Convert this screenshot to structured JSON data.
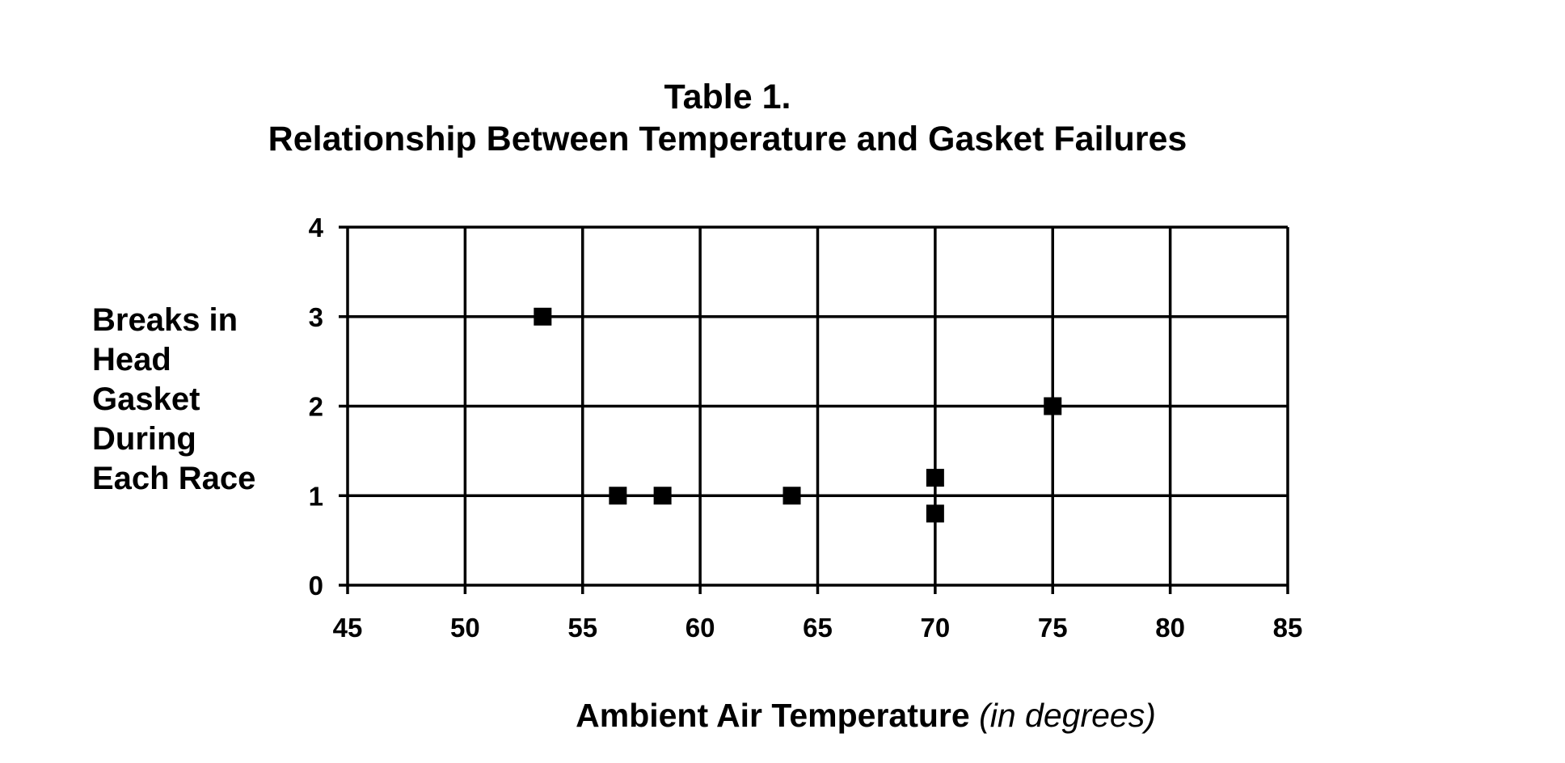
{
  "chart_data": {
    "type": "scatter",
    "title": "Table 1.",
    "subtitle": "Relationship Between Temperature and Gasket Failures",
    "xlabel": "Ambient Air Temperature",
    "xlabel_unit": "(in degrees)",
    "ylabel_lines": [
      "Breaks in",
      "Head",
      "Gasket",
      "During",
      "Each Race"
    ],
    "xlim": [
      45,
      85
    ],
    "ylim": [
      0,
      4
    ],
    "x_ticks": [
      "45",
      "50",
      "55",
      "60",
      "65",
      "70",
      "75",
      "80",
      "85"
    ],
    "y_ticks": [
      "0",
      "1",
      "2",
      "3",
      "4"
    ],
    "grid": true,
    "marker": "square",
    "marker_color": "#000000",
    "series": [
      {
        "points": [
          {
            "x": 53.3,
            "y": 3
          },
          {
            "x": 56.5,
            "y": 1
          },
          {
            "x": 58.4,
            "y": 1
          },
          {
            "x": 63.9,
            "y": 1
          },
          {
            "x": 70,
            "y": 1.2
          },
          {
            "x": 70,
            "y": 0.8
          },
          {
            "x": 75,
            "y": 2
          }
        ]
      }
    ]
  }
}
